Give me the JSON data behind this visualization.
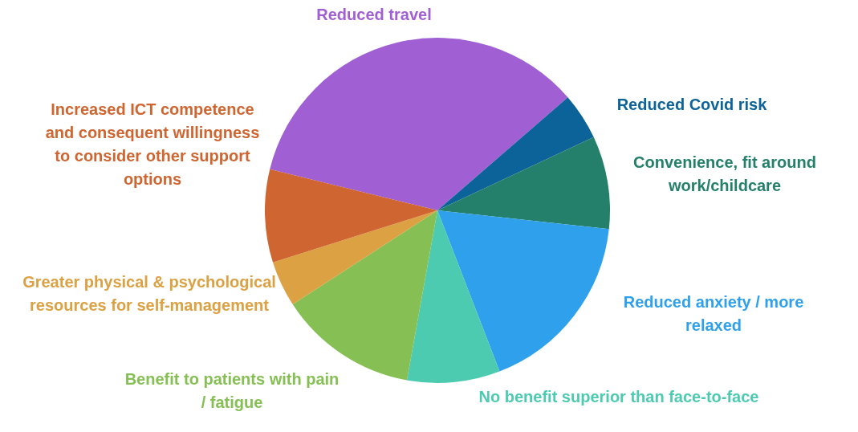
{
  "chart_data": {
    "type": "pie",
    "categories": [
      "Reduced travel",
      "Reduced Covid risk",
      "Convenience, fit around work/childcare",
      "Reduced anxiety / more relaxed",
      "No benefit superior than face-to-face",
      "Benefit to patients with pain / fatigue",
      "Greater physical & psychological resources for self-management",
      "Increased ICT competence and consequent willingness to consider other support options"
    ],
    "values": [
      34.8,
      4.4,
      8.7,
      17.4,
      8.7,
      13,
      4.3,
      8.7
    ],
    "colors": [
      "#a05fd3",
      "#0c6399",
      "#24806a",
      "#2fa1ec",
      "#4dcbb0",
      "#86c055",
      "#dca143",
      "#cf6530"
    ],
    "legend": false
  }
}
